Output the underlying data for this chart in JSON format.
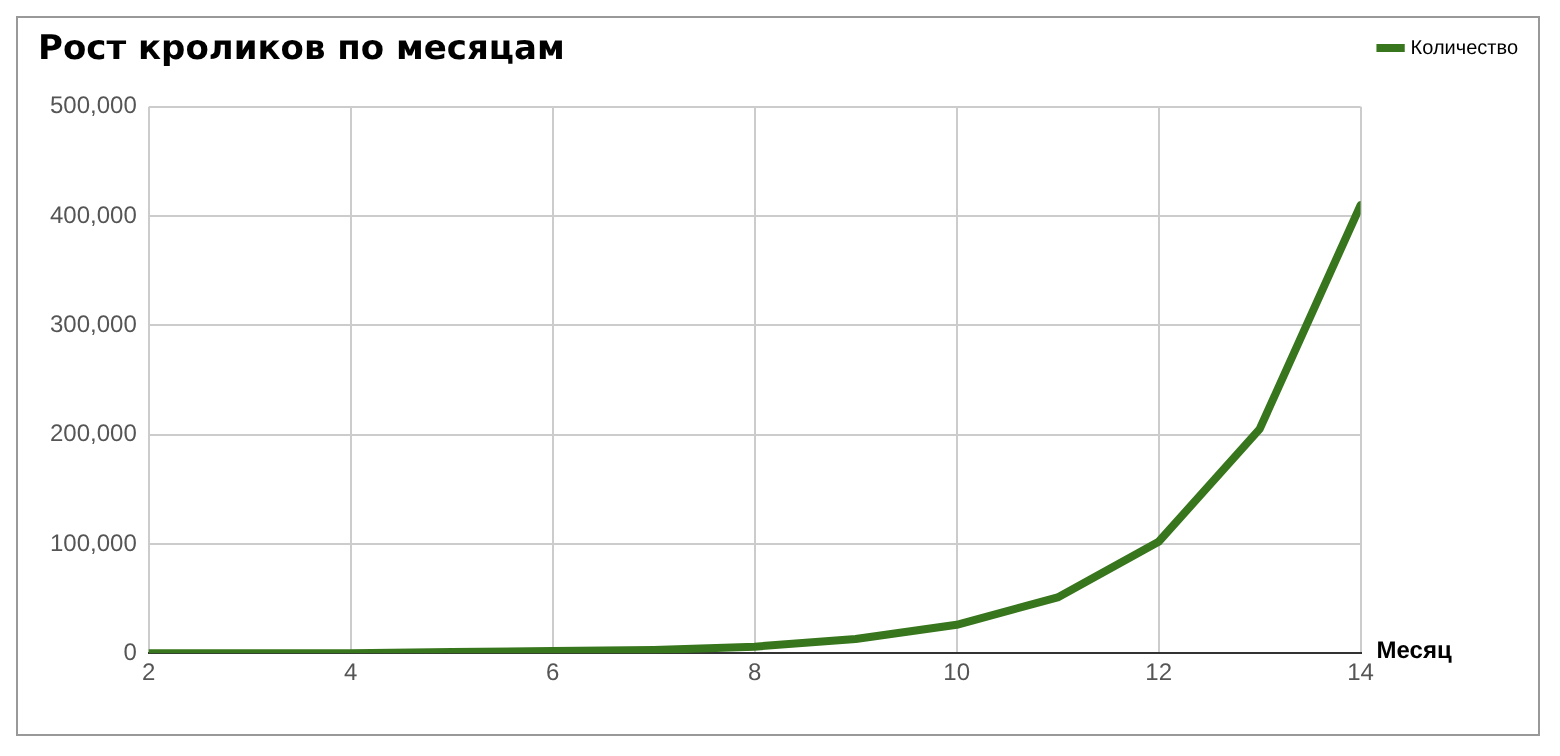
{
  "chart_data": {
    "type": "line",
    "title": "Рост кроликов по месяцам",
    "xlabel": "Месяц",
    "x": [
      2,
      3,
      4,
      5,
      6,
      7,
      8,
      9,
      10,
      11,
      12,
      13,
      14
    ],
    "series": [
      {
        "name": "Количество",
        "color": "#38761d",
        "values": [
          0,
          0,
          0,
          1000,
          2000,
          3000,
          6000,
          13000,
          26000,
          51000,
          102000,
          205000,
          410000
        ]
      }
    ],
    "xlim": [
      2,
      14
    ],
    "xticks": [
      2,
      4,
      6,
      8,
      10,
      12,
      14
    ],
    "ylim": [
      0,
      500000
    ],
    "yticks": [
      0,
      {
        "value": 100000,
        "label": "100,000"
      },
      {
        "value": 200000,
        "label": "200,000"
      },
      {
        "value": 300000,
        "label": "300,000"
      },
      {
        "value": 400000,
        "label": "400,000"
      },
      {
        "value": 500000,
        "label": "500,000"
      }
    ],
    "grid": true,
    "legend": "top right",
    "marker": "none",
    "line_style": "solid"
  }
}
